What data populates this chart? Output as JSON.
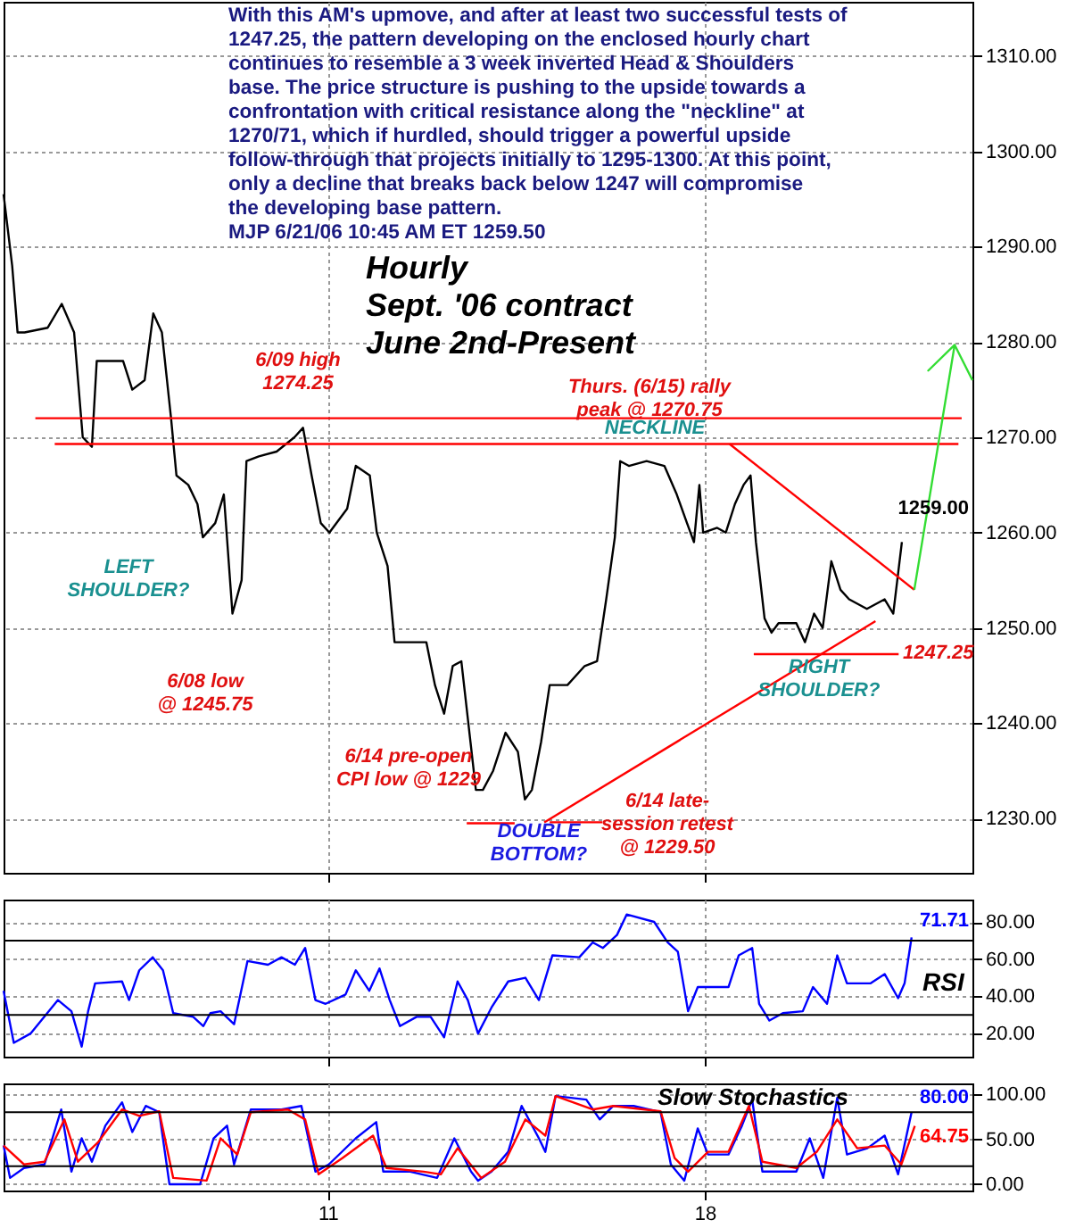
{
  "chart_data": [
    {
      "type": "line",
      "title": "Hourly\nSept. '06 contract\nJune 2nd-Present",
      "annotations": [
        "With this AM's upmove, and after at least two successful tests of\n1247.25, the pattern developing on the enclosed hourly chart\ncontinues to resemble a 3 week inverted Head & Shoulders\nbase. The price structure is pushing to the upside towards a\nconfrontation with critical resistance along the \"neckline\" at\n1270/71, which if hurdled, should trigger a powerful upside\nfollow-through that projects initially to 1295-1300.  At this point,\nonly a decline that breaks back below 1247 will compromise\nthe developing base pattern.\nMJP  6/21/06  10:45 AM ET 1259.50",
        "6/09 high\n1274.25",
        "6/08 low\n@ 1245.75",
        "LEFT\nSHOULDER?",
        "Thurs. (6/15) rally\npeak @ 1270.75",
        "NECKLINE",
        "6/14 pre-open\nCPI low @ 1229",
        "DOUBLE\nBOTTOM?",
        "6/14 late-\nsession retest\n@ 1229.50",
        "RIGHT\nSHOULDER?",
        "1247.25",
        "1259.00"
      ],
      "xlim": [
        4.98,
        22.97
      ],
      "xticks": [
        11,
        18
      ],
      "ylim": [
        1224.3,
        1315.7
      ],
      "yticks": [
        {
          "value": 1230,
          "label": "1230.00"
        },
        {
          "value": 1240,
          "label": "1240.00"
        },
        {
          "value": 1250,
          "label": "1250.00"
        },
        {
          "value": 1260,
          "label": "1260.00"
        },
        {
          "value": 1270,
          "label": "1270.00"
        },
        {
          "value": 1280,
          "label": "1280.00"
        },
        {
          "value": 1290,
          "label": "1290.00"
        },
        {
          "value": 1300,
          "label": "1300.00"
        },
        {
          "value": 1310,
          "label": "1310.00"
        }
      ],
      "grid": true,
      "tick_labels": "y",
      "series": [
        {
          "color": "#000000",
          "x": [
            4.98,
            5.14,
            5.24,
            5.37,
            5.8,
            6.06,
            6.29,
            6.45,
            6.62,
            6.71,
            7.2,
            7.37,
            7.6,
            7.76,
            7.92,
            8.09,
            8.19,
            8.41,
            8.58,
            8.68,
            8.91,
            9.07,
            9.23,
            9.4,
            9.49,
            9.72,
            10.05,
            10.38,
            10.54,
            10.7,
            10.87,
            11.03,
            11.36,
            11.52,
            11.78,
            11.91,
            12.11,
            12.24,
            12.44,
            12.83,
            12.99,
            13.16,
            13.32,
            13.48,
            13.65,
            13.75,
            13.88,
            14.07,
            14.3,
            14.53,
            14.66,
            14.79,
            14.96,
            15.12,
            15.45,
            15.77,
            16.0,
            16.17,
            16.33,
            16.43,
            16.59,
            16.92,
            17.25,
            17.48,
            17.67,
            17.8,
            17.9,
            17.97,
            18.23,
            18.39,
            18.56,
            18.72,
            18.85,
            18.95,
            19.11,
            19.24,
            19.37,
            19.7,
            19.86,
            20.03,
            20.19,
            20.35,
            20.52,
            20.68,
            21.01,
            21.34,
            21.5,
            21.66
          ],
          "values": [
            1295.5,
            1288,
            1281,
            1281,
            1281.5,
            1284,
            1281,
            1270,
            1269,
            1278,
            1278,
            1275,
            1276,
            1283,
            1281,
            1272,
            1266,
            1265,
            1263,
            1259.5,
            1261,
            1264,
            1251.5,
            1255,
            1267.5,
            1268,
            1268.5,
            1270,
            1271,
            1266,
            1261,
            1260,
            1262.5,
            1267,
            1266,
            1260,
            1256.5,
            1248.5,
            1248.5,
            1248.5,
            1244,
            1241,
            1246,
            1246.5,
            1238,
            1233,
            1233,
            1235,
            1239,
            1237,
            1232,
            1233,
            1238,
            1244,
            1244,
            1246,
            1246.5,
            1253,
            1259.5,
            1267.5,
            1267,
            1267.5,
            1267,
            1264,
            1261,
            1259,
            1265,
            1260,
            1260.5,
            1260,
            1263,
            1265,
            1266,
            1259,
            1251,
            1249.5,
            1250.5,
            1250.5,
            1248.5,
            1251.5,
            1250,
            1257,
            1254,
            1253,
            1252,
            1253,
            1251.5,
            1259
          ]
        },
        {
          "color": "#ff0000",
          "x": [
            5.57,
            22.77
          ],
          "values": [
            1272,
            1272
          ]
        },
        {
          "color": "#ff0000",
          "x": [
            5.93,
            22.71
          ],
          "values": [
            1269.3,
            1269.3
          ]
        },
        {
          "color": "#ff0000",
          "x": [
            18.91,
            21.6
          ],
          "values": [
            1247.25,
            1247.25
          ]
        },
        {
          "color": "#ff0000",
          "x": [
            13.58,
            14.47
          ],
          "values": [
            1229.5,
            1229.5
          ]
        },
        {
          "color": "#ff0000",
          "x": [
            15.12,
            16.1
          ],
          "values": [
            1229.6,
            1229.6
          ]
        },
        {
          "color": "#ff0000",
          "x": [
            18.46,
            21.89
          ],
          "values": [
            1269.3,
            1254
          ]
        },
        {
          "color": "#ff0000",
          "x": [
            15.02,
            21.17
          ],
          "values": [
            1229.6,
            1250.7
          ]
        },
        {
          "color": "#33dd33",
          "x": [
            21.89,
            22.64,
            22.15,
            22.64,
            22.97
          ],
          "values": [
            1254,
            1279.7,
            1277,
            1279.7,
            1276
          ]
        }
      ]
    },
    {
      "type": "line",
      "title": "RSI",
      "annotations": [
        "71.71"
      ],
      "xlim": [
        4.98,
        22.97
      ],
      "xticks": [
        11,
        18
      ],
      "ylim": [
        7.6,
        92
      ],
      "yticks": [
        {
          "value": 20,
          "label": "20.00"
        },
        {
          "value": 40,
          "label": "40.00"
        },
        {
          "value": 60,
          "label": "60.00"
        },
        {
          "value": 80,
          "label": "80.00"
        }
      ],
      "grid": true,
      "tick_labels": "y",
      "ref_lines": [
        {
          "axis": "y",
          "value": 70,
          "color": "#000000"
        },
        {
          "axis": "y",
          "value": 30,
          "color": "#000000"
        }
      ],
      "series": [
        {
          "color": "#0000ff",
          "x": [
            4.98,
            5.17,
            5.48,
            5.99,
            6.24,
            6.43,
            6.55,
            6.68,
            7.18,
            7.31,
            7.5,
            7.75,
            7.94,
            8.13,
            8.5,
            8.69,
            8.82,
            9.01,
            9.26,
            9.51,
            9.89,
            10.14,
            10.39,
            10.58,
            10.77,
            10.96,
            11.33,
            11.52,
            11.77,
            11.96,
            12.15,
            12.34,
            12.65,
            12.91,
            13.16,
            13.41,
            13.6,
            13.79,
            14.04,
            14.35,
            14.67,
            14.92,
            15.17,
            15.67,
            15.92,
            16.11,
            16.37,
            16.55,
            17.06,
            17.31,
            17.5,
            17.69,
            17.87,
            18.06,
            18.44,
            18.63,
            18.88,
            19.01,
            19.2,
            19.45,
            19.82,
            20.01,
            20.27,
            20.46,
            20.64,
            21.08,
            21.34,
            21.59,
            21.71,
            21.84
          ],
          "values": [
            43,
            15,
            20,
            38,
            32,
            13,
            32,
            47,
            48,
            38,
            54,
            61,
            54,
            31,
            29,
            24,
            31,
            32,
            25,
            59,
            57,
            61,
            57,
            66,
            38,
            36,
            41,
            54,
            43,
            55,
            38,
            24,
            29,
            29,
            18,
            48,
            38,
            20,
            34,
            48,
            50,
            38,
            62,
            61,
            69,
            66,
            73,
            84,
            80,
            69,
            64,
            32,
            45,
            45,
            45,
            62,
            66,
            36,
            27,
            31,
            32,
            45,
            36,
            62,
            47,
            47,
            52,
            39,
            47,
            71.71
          ]
        }
      ]
    },
    {
      "type": "line",
      "title": "Slow Stochastics",
      "annotations": [
        "80.00",
        "64.75"
      ],
      "xlim": [
        4.98,
        22.97
      ],
      "xticks": [
        11,
        18
      ],
      "ylim": [
        -7,
        112
      ],
      "yticks": [
        {
          "value": 0,
          "label": "0.00"
        },
        {
          "value": 50,
          "label": "50.00"
        },
        {
          "value": 100,
          "label": "100.00"
        }
      ],
      "grid": true,
      "ref_lines": [
        {
          "axis": "y",
          "value": 80,
          "color": "#000000"
        },
        {
          "axis": "y",
          "value": 20,
          "color": "#000000"
        }
      ],
      "series": [
        {
          "color": "#0000ff",
          "x": [
            4.98,
            5.1,
            5.36,
            5.74,
            6.05,
            6.24,
            6.43,
            6.62,
            6.87,
            7.18,
            7.37,
            7.62,
            7.87,
            8.06,
            8.63,
            8.88,
            9.13,
            9.26,
            9.57,
            10.14,
            10.51,
            10.77,
            11.02,
            11.52,
            11.9,
            12.03,
            12.53,
            13.03,
            13.35,
            13.66,
            13.79,
            14.04,
            14.35,
            14.6,
            14.92,
            15.04,
            15.23,
            15.8,
            16.05,
            16.3,
            16.68,
            17.18,
            17.37,
            17.62,
            17.87,
            18.06,
            18.44,
            18.69,
            18.88,
            19.07,
            19.32,
            19.7,
            19.95,
            20.2,
            20.46,
            20.64,
            21.02,
            21.34,
            21.59,
            21.84
          ],
          "values": [
            43,
            7,
            18,
            22,
            83,
            14,
            51,
            25,
            65,
            91,
            58,
            87,
            80,
            0,
            0,
            51,
            65,
            22,
            83,
            83,
            87,
            14,
            22,
            51,
            69,
            14,
            14,
            7,
            51,
            14,
            4,
            14,
            36,
            87,
            51,
            36,
            98,
            94,
            72,
            87,
            87,
            80,
            22,
            4,
            62,
            33,
            33,
            65,
            94,
            14,
            14,
            14,
            51,
            7,
            96,
            33,
            40,
            54,
            11,
            80
          ]
        },
        {
          "color": "#ff0000",
          "x": [
            4.98,
            5.36,
            5.74,
            6.11,
            6.36,
            6.74,
            7.18,
            7.5,
            7.87,
            8.13,
            8.75,
            9.01,
            9.32,
            9.57,
            10.26,
            10.58,
            10.83,
            11.27,
            11.84,
            12.09,
            12.78,
            13.1,
            13.41,
            13.85,
            14.29,
            14.67,
            15.04,
            15.23,
            15.92,
            16.3,
            17.18,
            17.44,
            17.69,
            18.06,
            18.44,
            18.82,
            19.07,
            19.7,
            20.08,
            20.46,
            20.83,
            21.34,
            21.65,
            21.9
          ],
          "values": [
            43,
            22,
            25,
            72,
            25,
            47,
            83,
            76,
            81,
            7,
            4,
            51,
            33,
            80,
            83,
            72,
            11,
            29,
            54,
            18,
            14,
            11,
            40,
            7,
            25,
            72,
            54,
            98,
            83,
            87,
            81,
            29,
            14,
            36,
            36,
            87,
            25,
            18,
            36,
            72,
            40,
            43,
            22,
            64.75
          ]
        }
      ]
    }
  ]
}
